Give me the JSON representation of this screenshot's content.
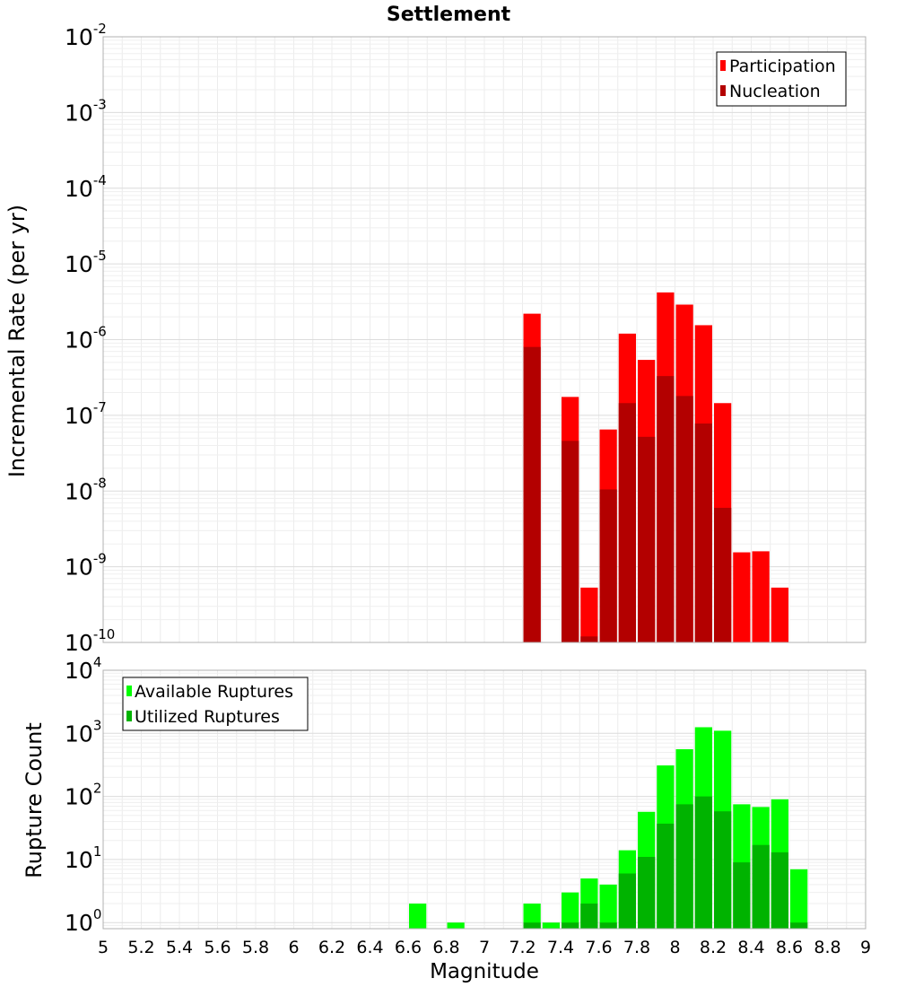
{
  "chart_data": [
    {
      "type": "bar",
      "title": "Settlement",
      "ylabel": "Incremental Rate (per yr)",
      "xlabel": "",
      "yscale": "log",
      "ylim": [
        1e-10,
        0.01
      ],
      "xlim": [
        5,
        9
      ],
      "bar_width": 0.1,
      "grid": true,
      "legend_position": "top-right",
      "ytick_labels": [
        {
          "base": "10",
          "exp": "-10",
          "value": 1e-10
        },
        {
          "base": "10",
          "exp": "-9",
          "value": 1e-09
        },
        {
          "base": "10",
          "exp": "-8",
          "value": 1e-08
        },
        {
          "base": "10",
          "exp": "-7",
          "value": 1e-07
        },
        {
          "base": "10",
          "exp": "-6",
          "value": 1e-06
        },
        {
          "base": "10",
          "exp": "-5",
          "value": 1e-05
        },
        {
          "base": "10",
          "exp": "-4",
          "value": 0.0001
        },
        {
          "base": "10",
          "exp": "-3",
          "value": 0.001
        },
        {
          "base": "10",
          "exp": "-2",
          "value": 0.01
        }
      ],
      "series": [
        {
          "name": "Participation",
          "color": "#ff0000",
          "x": [
            7.25,
            7.45,
            7.55,
            7.65,
            7.75,
            7.85,
            7.95,
            8.05,
            8.15,
            8.25,
            8.35,
            8.45,
            8.55
          ],
          "values": [
            2.2e-06,
            1.75e-07,
            5.3e-10,
            6.5e-08,
            1.2e-06,
            5.4e-07,
            4.2e-06,
            2.9e-06,
            1.55e-06,
            1.45e-07,
            1.55e-09,
            1.6e-09,
            5.3e-10
          ]
        },
        {
          "name": "Nucleation",
          "color": "#b30000",
          "x": [
            7.25,
            7.45,
            7.55,
            7.65,
            7.75,
            7.85,
            7.95,
            8.05,
            8.15,
            8.25
          ],
          "values": [
            8e-07,
            4.6e-08,
            1.2e-10,
            1.05e-08,
            1.45e-07,
            5.2e-08,
            3.3e-07,
            1.8e-07,
            7.8e-08,
            6e-09
          ]
        }
      ]
    },
    {
      "type": "bar",
      "title": "",
      "ylabel": "Rupture Count",
      "xlabel": "Magnitude",
      "yscale": "log",
      "ylim": [
        0.8,
        10000
      ],
      "xlim": [
        5,
        9
      ],
      "bar_width": 0.1,
      "grid": true,
      "legend_position": "top-left",
      "xticks": [
        "5",
        "5.2",
        "5.4",
        "5.6",
        "5.8",
        "6",
        "6.2",
        "6.4",
        "6.6",
        "6.8",
        "7",
        "7.2",
        "7.4",
        "7.6",
        "7.8",
        "8",
        "8.2",
        "8.4",
        "8.6",
        "8.8",
        "9"
      ],
      "ytick_labels": [
        {
          "base": "10",
          "exp": "0",
          "value": 1
        },
        {
          "base": "10",
          "exp": "1",
          "value": 10
        },
        {
          "base": "10",
          "exp": "2",
          "value": 100
        },
        {
          "base": "10",
          "exp": "3",
          "value": 1000
        },
        {
          "base": "10",
          "exp": "4",
          "value": 10000
        }
      ],
      "series": [
        {
          "name": "Available Ruptures",
          "color": "#00ff00",
          "x": [
            6.65,
            6.85,
            7.25,
            7.35,
            7.45,
            7.55,
            7.65,
            7.75,
            7.85,
            7.95,
            8.05,
            8.15,
            8.25,
            8.35,
            8.45,
            8.55,
            8.65
          ],
          "values": [
            2,
            1,
            2,
            1,
            3,
            5,
            4,
            14,
            57,
            310,
            560,
            1250,
            1100,
            75,
            68,
            90,
            7
          ]
        },
        {
          "name": "Utilized Ruptures",
          "color": "#00b300",
          "x": [
            7.25,
            7.45,
            7.55,
            7.65,
            7.75,
            7.85,
            7.95,
            8.05,
            8.15,
            8.25,
            8.35,
            8.45,
            8.55,
            8.65
          ],
          "values": [
            1,
            1,
            2,
            1,
            6,
            11,
            37,
            75,
            100,
            58,
            9,
            17,
            13,
            1
          ]
        }
      ]
    }
  ]
}
